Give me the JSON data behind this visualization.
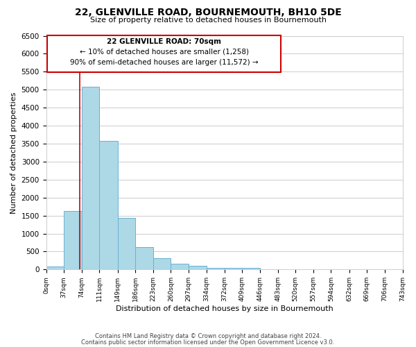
{
  "title": "22, GLENVILLE ROAD, BOURNEMOUTH, BH10 5DE",
  "subtitle": "Size of property relative to detached houses in Bournemouth",
  "xlabel": "Distribution of detached houses by size in Bournemouth",
  "ylabel": "Number of detached properties",
  "bar_edges": [
    0,
    37,
    74,
    111,
    149,
    186,
    223,
    260,
    297,
    334,
    372,
    409,
    446,
    483,
    520,
    557,
    594,
    632,
    669,
    706,
    743
  ],
  "bar_heights": [
    75,
    1630,
    5080,
    3580,
    1430,
    620,
    310,
    155,
    100,
    40,
    50,
    50,
    0,
    0,
    0,
    0,
    0,
    0,
    0,
    0
  ],
  "bar_color": "#add8e6",
  "bar_edge_color": "#6ab0d4",
  "property_line_x": 70,
  "property_line_color": "#cc0000",
  "ylim": [
    0,
    6500
  ],
  "xlim": [
    0,
    743
  ],
  "annotation_title": "22 GLENVILLE ROAD: 70sqm",
  "annotation_line1": "← 10% of detached houses are smaller (1,258)",
  "annotation_line2": "90% of semi-detached houses are larger (11,572) →",
  "footer_line1": "Contains HM Land Registry data © Crown copyright and database right 2024.",
  "footer_line2": "Contains public sector information licensed under the Open Government Licence v3.0.",
  "tick_labels": [
    "0sqm",
    "37sqm",
    "74sqm",
    "111sqm",
    "149sqm",
    "186sqm",
    "223sqm",
    "260sqm",
    "297sqm",
    "334sqm",
    "372sqm",
    "409sqm",
    "446sqm",
    "483sqm",
    "520sqm",
    "557sqm",
    "594sqm",
    "632sqm",
    "669sqm",
    "706sqm",
    "743sqm"
  ],
  "yticks": [
    0,
    500,
    1000,
    1500,
    2000,
    2500,
    3000,
    3500,
    4000,
    4500,
    5000,
    5500,
    6000,
    6500
  ],
  "background_color": "#ffffff",
  "grid_color": "#cccccc"
}
